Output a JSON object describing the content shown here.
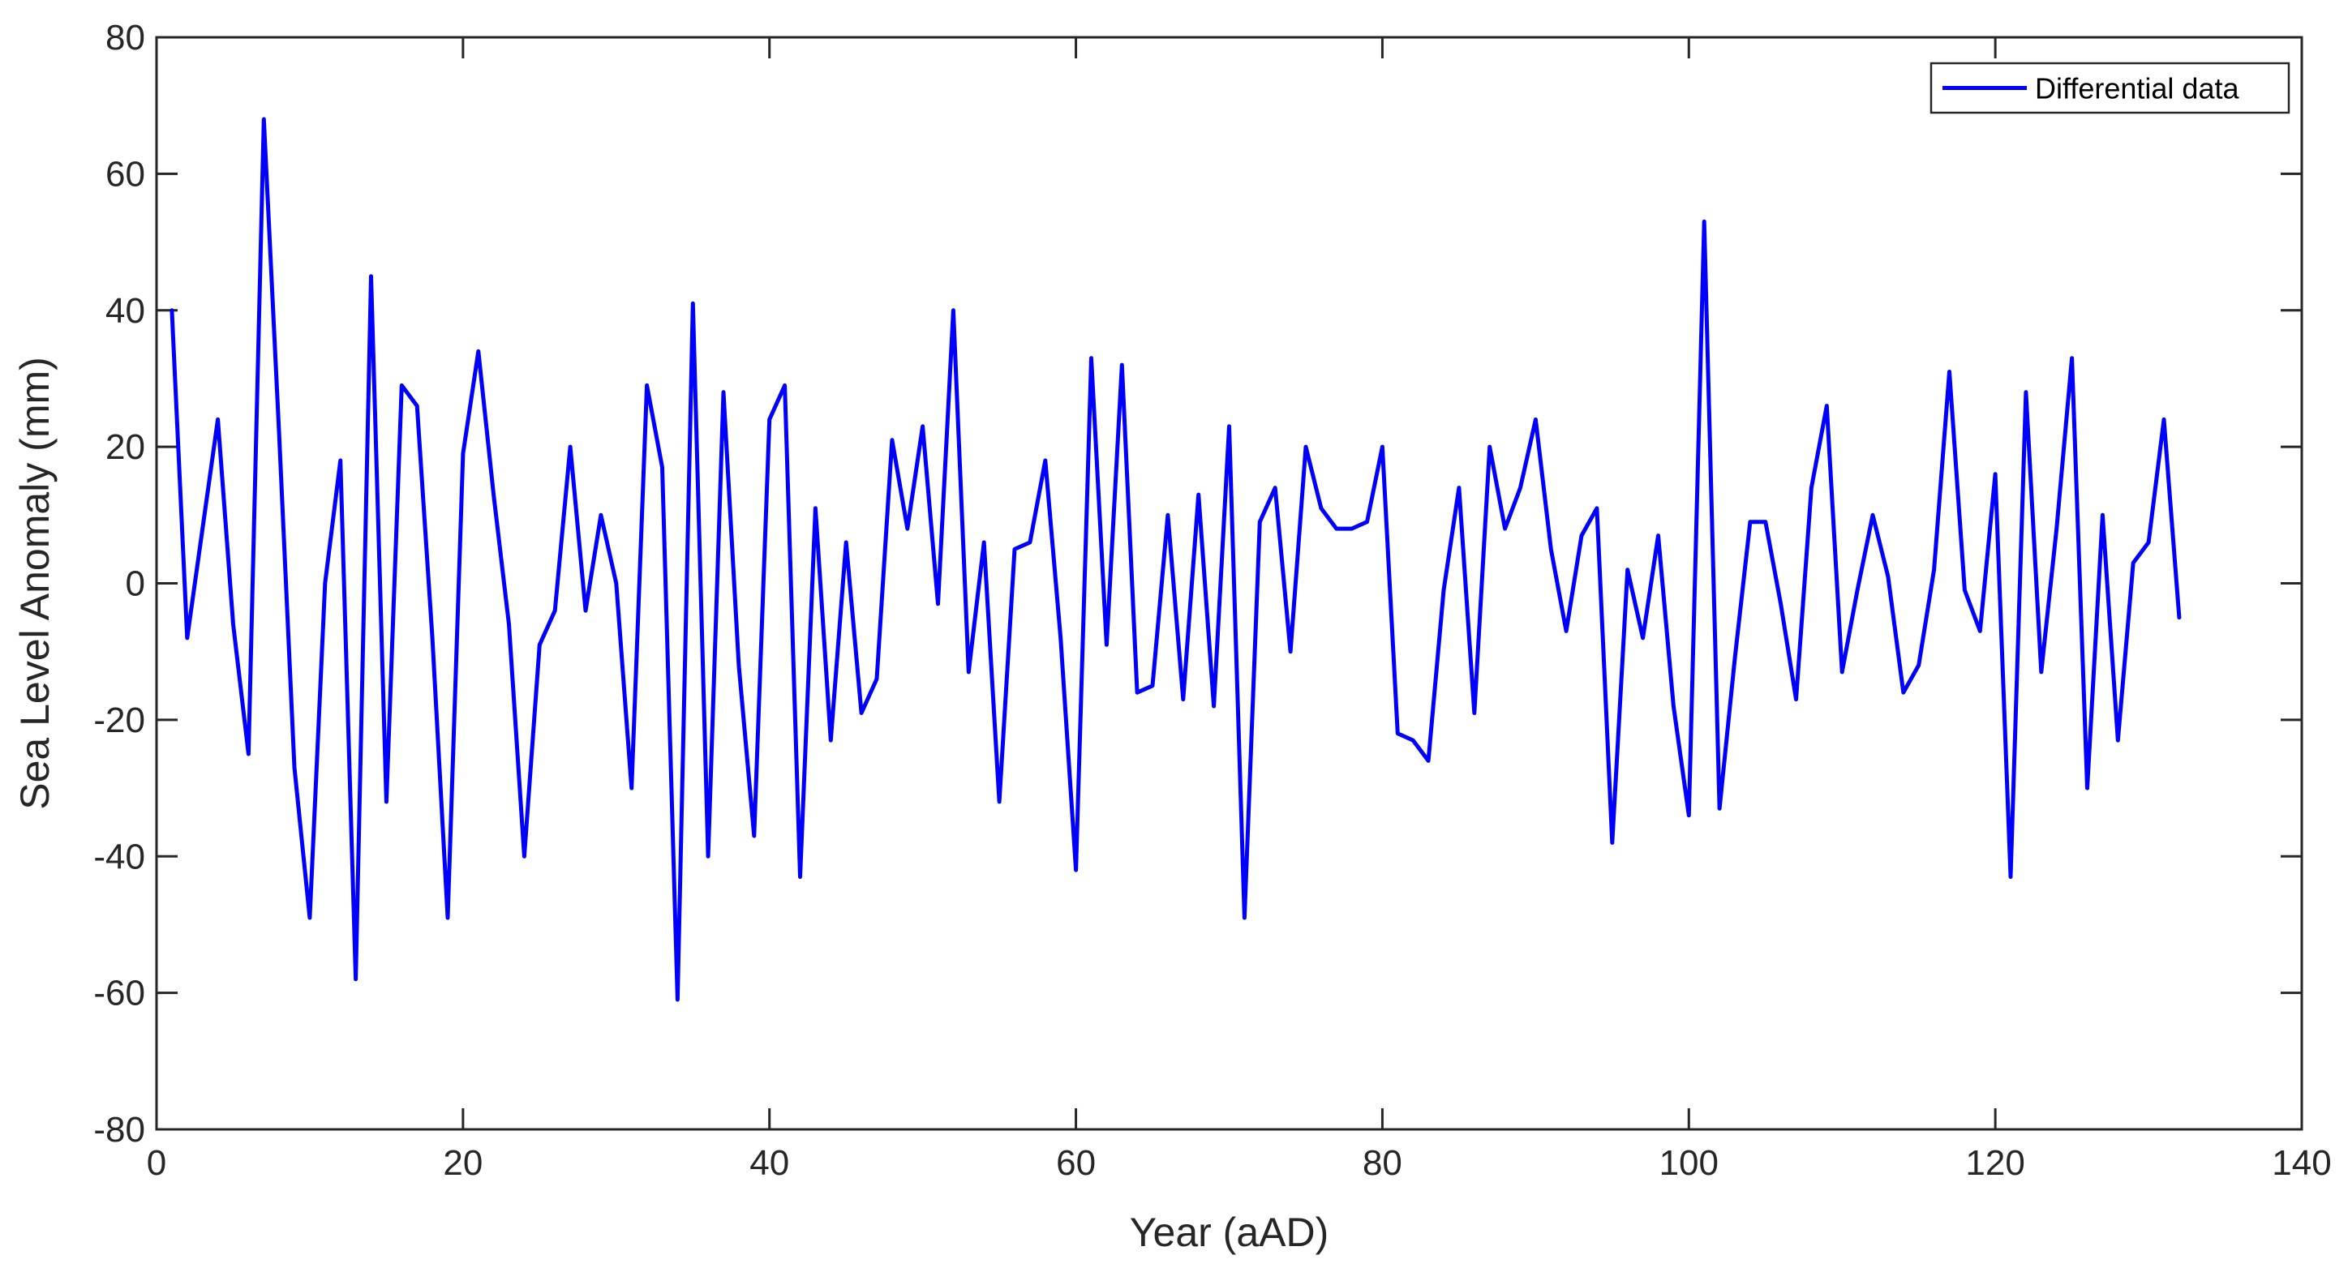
{
  "chart_data": {
    "type": "line",
    "title": "",
    "xlabel": "Year (aAD)",
    "ylabel": "Sea Level Anomaly (mm)",
    "xlim": [
      0,
      140
    ],
    "ylim": [
      -80,
      80
    ],
    "xticks": [
      0,
      20,
      40,
      60,
      80,
      100,
      120,
      140
    ],
    "yticks": [
      -80,
      -60,
      -40,
      -20,
      0,
      20,
      40,
      60,
      80
    ],
    "xtick_labels": [
      "0",
      "20",
      "40",
      "60",
      "80",
      "100",
      "120",
      "140"
    ],
    "ytick_labels": [
      "-80",
      "-60",
      "-40",
      "-20",
      "0",
      "20",
      "40",
      "60",
      "80"
    ],
    "grid": false,
    "legend": "top-right",
    "series": [
      {
        "name": "Differential data",
        "color": "#0000ff",
        "x": [
          1,
          2,
          3,
          4,
          5,
          6,
          7,
          8,
          9,
          10,
          11,
          12,
          13,
          14,
          15,
          16,
          17,
          18,
          19,
          20,
          21,
          22,
          23,
          24,
          25,
          26,
          27,
          28,
          29,
          30,
          31,
          32,
          33,
          34,
          35,
          36,
          37,
          38,
          39,
          40,
          41,
          42,
          43,
          44,
          45,
          46,
          47,
          48,
          49,
          50,
          51,
          52,
          53,
          54,
          55,
          56,
          57,
          58,
          59,
          60,
          61,
          62,
          63,
          64,
          65,
          66,
          67,
          68,
          69,
          70,
          71,
          72,
          73,
          74,
          75,
          76,
          77,
          78,
          79,
          80,
          81,
          82,
          83,
          84,
          85,
          86,
          87,
          88,
          89,
          90,
          91,
          92,
          93,
          94,
          95,
          96,
          97,
          98,
          99,
          100,
          101,
          102,
          103,
          104,
          105,
          106,
          107,
          108,
          109,
          110,
          111,
          112,
          113,
          114,
          115,
          116,
          117,
          118,
          119,
          120,
          121,
          122,
          123,
          124,
          125,
          126,
          127,
          128,
          129,
          130,
          131,
          132
        ],
        "values": [
          40,
          -8,
          8,
          24,
          -6,
          -25,
          68,
          22,
          -27,
          -49,
          0,
          18,
          -58,
          45,
          -32,
          29,
          26,
          -8,
          -49,
          19,
          34,
          13,
          -6,
          -40,
          -9,
          -4,
          20,
          -4,
          10,
          0,
          -30,
          29,
          17,
          -61,
          41,
          -40,
          28,
          -12,
          -37,
          24,
          29,
          -43,
          11,
          -23,
          6,
          -19,
          -14,
          21,
          8,
          23,
          -3,
          40,
          -13,
          6,
          -32,
          5,
          6,
          18,
          -8,
          -42,
          33,
          -9,
          32,
          -16,
          -15,
          10,
          -17,
          13,
          -18,
          23,
          -49,
          9,
          14,
          -10,
          20,
          11,
          8,
          8,
          9,
          20,
          -22,
          -23,
          -26,
          -1,
          14,
          -19,
          20,
          8,
          14,
          24,
          5,
          -7,
          7,
          11,
          -38,
          2,
          -8,
          7,
          -18,
          -34,
          53,
          -33,
          -11,
          9,
          9,
          -3,
          -17,
          14,
          26,
          -13,
          -1,
          10,
          1,
          -16,
          -12,
          2,
          31,
          -1,
          -7,
          16,
          -43,
          28,
          -13,
          8,
          33,
          -30,
          10,
          -23,
          3,
          6,
          24,
          -5
        ]
      }
    ]
  }
}
